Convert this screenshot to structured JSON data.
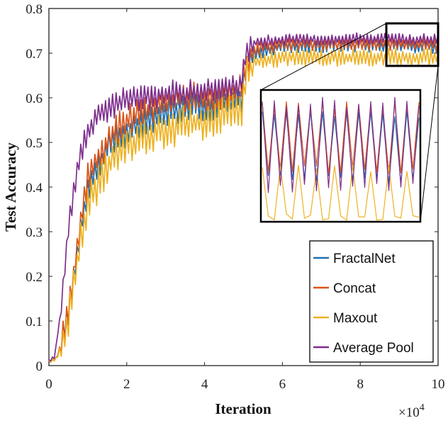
{
  "chart_data": {
    "type": "line",
    "title": "",
    "xlabel": "Iteration",
    "ylabel": "Test Accuracy",
    "x_multiplier_label": "×10^4",
    "x_multiplier_base": "×10",
    "x_multiplier_exp": "4",
    "xlim": [
      0,
      10
    ],
    "ylim": [
      0,
      0.8
    ],
    "xticks": [
      0,
      2,
      4,
      6,
      8,
      10
    ],
    "xtick_labels": [
      "0",
      "2",
      "4",
      "6",
      "8",
      "10"
    ],
    "yticks": [
      0,
      0.1,
      0.2,
      0.3,
      0.4,
      0.5,
      0.6,
      0.7,
      0.8
    ],
    "ytick_labels": [
      "0",
      "0.1",
      "0.2",
      "0.3",
      "0.4",
      "0.5",
      "0.6",
      "0.7",
      "0.8"
    ],
    "grid": false,
    "legend_position": "bottom-right",
    "series": [
      {
        "name": "FractalNet",
        "color": "#1f6eb0",
        "anchors": [
          [
            0,
            0.01
          ],
          [
            0.2,
            0.015
          ],
          [
            0.4,
            0.08
          ],
          [
            0.6,
            0.17
          ],
          [
            0.8,
            0.3
          ],
          [
            1.0,
            0.4
          ],
          [
            1.3,
            0.45
          ],
          [
            1.6,
            0.5
          ],
          [
            2.0,
            0.52
          ],
          [
            2.5,
            0.55
          ],
          [
            3.0,
            0.57
          ],
          [
            3.5,
            0.58
          ],
          [
            4.0,
            0.58
          ],
          [
            4.5,
            0.59
          ],
          [
            4.95,
            0.6
          ],
          [
            5.05,
            0.66
          ],
          [
            5.3,
            0.7
          ],
          [
            6.0,
            0.715
          ],
          [
            8.0,
            0.718
          ],
          [
            10.0,
            0.715
          ]
        ],
        "noise": 0.035
      },
      {
        "name": "Concat",
        "color": "#d95319",
        "anchors": [
          [
            0,
            0.01
          ],
          [
            0.2,
            0.015
          ],
          [
            0.4,
            0.08
          ],
          [
            0.6,
            0.18
          ],
          [
            0.8,
            0.32
          ],
          [
            1.0,
            0.42
          ],
          [
            1.3,
            0.47
          ],
          [
            1.6,
            0.52
          ],
          [
            2.0,
            0.55
          ],
          [
            2.5,
            0.57
          ],
          [
            3.0,
            0.59
          ],
          [
            3.5,
            0.6
          ],
          [
            4.0,
            0.6
          ],
          [
            4.5,
            0.61
          ],
          [
            4.95,
            0.62
          ],
          [
            5.05,
            0.67
          ],
          [
            5.3,
            0.71
          ],
          [
            6.0,
            0.72
          ],
          [
            8.0,
            0.722
          ],
          [
            10.0,
            0.72
          ]
        ],
        "noise": 0.035
      },
      {
        "name": "Maxout",
        "color": "#edb120",
        "anchors": [
          [
            0,
            0.01
          ],
          [
            0.2,
            0.015
          ],
          [
            0.4,
            0.07
          ],
          [
            0.6,
            0.15
          ],
          [
            0.8,
            0.27
          ],
          [
            1.0,
            0.36
          ],
          [
            1.3,
            0.41
          ],
          [
            1.6,
            0.46
          ],
          [
            2.0,
            0.49
          ],
          [
            2.5,
            0.51
          ],
          [
            3.0,
            0.53
          ],
          [
            3.5,
            0.54
          ],
          [
            4.0,
            0.55
          ],
          [
            4.5,
            0.56
          ],
          [
            4.95,
            0.57
          ],
          [
            5.05,
            0.64
          ],
          [
            5.3,
            0.68
          ],
          [
            6.0,
            0.69
          ],
          [
            8.0,
            0.69
          ],
          [
            10.0,
            0.69
          ]
        ],
        "noise": 0.045
      },
      {
        "name": "Average Pool",
        "color": "#7e2f8e",
        "anchors": [
          [
            0,
            0.01
          ],
          [
            0.15,
            0.02
          ],
          [
            0.3,
            0.12
          ],
          [
            0.5,
            0.3
          ],
          [
            0.7,
            0.43
          ],
          [
            0.9,
            0.5
          ],
          [
            1.2,
            0.56
          ],
          [
            1.6,
            0.58
          ],
          [
            2.0,
            0.6
          ],
          [
            2.5,
            0.6
          ],
          [
            3.0,
            0.61
          ],
          [
            3.5,
            0.61
          ],
          [
            4.0,
            0.62
          ],
          [
            4.5,
            0.62
          ],
          [
            4.95,
            0.63
          ],
          [
            5.05,
            0.69
          ],
          [
            5.3,
            0.725
          ],
          [
            6.0,
            0.73
          ],
          [
            8.0,
            0.732
          ],
          [
            10.0,
            0.73
          ]
        ],
        "noise": 0.03
      }
    ],
    "inset": {
      "zoom_xrange": [
        8.8,
        10.0
      ],
      "zoom_yrange": [
        0.675,
        0.745
      ],
      "series_ranges": [
        {
          "name": "FractalNet",
          "low": 0.695,
          "high": 0.735,
          "period": 2
        },
        {
          "name": "Concat",
          "low": 0.7,
          "high": 0.74,
          "period": 2
        },
        {
          "name": "Maxout",
          "low": 0.675,
          "high": 0.705,
          "period": 3
        },
        {
          "name": "Average Pool",
          "low": 0.69,
          "high": 0.742,
          "period": 2
        }
      ]
    }
  }
}
